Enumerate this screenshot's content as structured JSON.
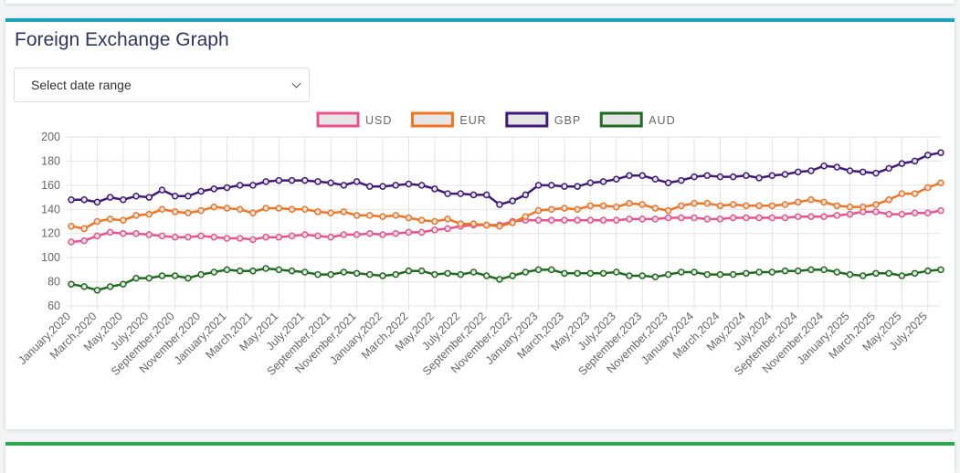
{
  "title": "Foreign Exchange Graph",
  "date_select": {
    "placeholder": "Select date range"
  },
  "chart_data": {
    "type": "line",
    "categories": [
      "January,2020",
      null,
      "March,2020",
      null,
      "May,2020",
      null,
      "July,2020",
      null,
      "September,2020",
      null,
      "November,2020",
      null,
      "January,2021",
      null,
      "March,2021",
      null,
      "May,2021",
      null,
      "July,2021",
      null,
      "September,2021",
      null,
      "November,2021",
      null,
      "January,2022",
      null,
      "March,2022",
      null,
      "May,2022",
      null,
      "July,2022",
      null,
      "September,2022",
      null,
      "November,2022",
      null,
      "January,2023",
      null,
      "March,2023",
      null,
      "May,2023",
      null,
      "July,2023",
      null,
      "September,2023",
      null,
      "November,2023",
      null,
      "January,2024",
      null,
      "March,2024",
      null,
      "May,2024",
      null,
      "July,2024",
      null,
      "September,2024",
      null,
      "November,2024",
      null,
      "January,2025",
      null,
      "March,2025",
      null,
      "May,2025",
      null,
      "July,2025",
      null
    ],
    "series": [
      {
        "name": "USD",
        "color": "#e8538f",
        "values": [
          113,
          114,
          118,
          121,
          120,
          120,
          119,
          118,
          117,
          117,
          118,
          117,
          116,
          116,
          115,
          117,
          117,
          118,
          119,
          118,
          117,
          119,
          119,
          120,
          119,
          120,
          121,
          121,
          123,
          124,
          126,
          127,
          127,
          127,
          130,
          131,
          131,
          131,
          131,
          131,
          131,
          131,
          131,
          132,
          132,
          132,
          133,
          133,
          133,
          132,
          132,
          133,
          133,
          133,
          133,
          133,
          134,
          134,
          134,
          135,
          136,
          138,
          138,
          136,
          136,
          137,
          137,
          139
        ]
      },
      {
        "name": "EUR",
        "color": "#f07423",
        "values": [
          126,
          124,
          130,
          132,
          131,
          135,
          136,
          140,
          138,
          137,
          139,
          142,
          141,
          140,
          137,
          141,
          141,
          140,
          140,
          138,
          137,
          138,
          135,
          135,
          134,
          135,
          133,
          131,
          130,
          132,
          128,
          128,
          127,
          126,
          129,
          134,
          139,
          140,
          141,
          140,
          143,
          143,
          142,
          145,
          144,
          141,
          139,
          143,
          145,
          145,
          143,
          144,
          143,
          143,
          143,
          144,
          146,
          148,
          146,
          143,
          142,
          142,
          144,
          148,
          153,
          153,
          158,
          162
        ]
      },
      {
        "name": "GBP",
        "color": "#3f1a7a",
        "values": [
          148,
          148,
          146,
          150,
          148,
          151,
          150,
          156,
          151,
          151,
          155,
          157,
          158,
          160,
          160,
          163,
          164,
          164,
          164,
          163,
          162,
          160,
          163,
          159,
          159,
          160,
          161,
          160,
          157,
          153,
          153,
          152,
          152,
          144,
          147,
          152,
          160,
          160,
          159,
          159,
          162,
          163,
          165,
          168,
          168,
          165,
          162,
          164,
          167,
          168,
          167,
          167,
          168,
          166,
          168,
          169,
          171,
          172,
          176,
          175,
          172,
          171,
          170,
          174,
          178,
          180,
          185,
          187
        ]
      },
      {
        "name": "AUD",
        "color": "#1f6b1f",
        "values": [
          78,
          76,
          73,
          76,
          78,
          83,
          83,
          85,
          85,
          83,
          86,
          88,
          90,
          89,
          89,
          91,
          90,
          89,
          88,
          86,
          86,
          88,
          87,
          86,
          85,
          86,
          89,
          89,
          86,
          87,
          86,
          88,
          85,
          82,
          85,
          88,
          90,
          90,
          87,
          87,
          87,
          87,
          88,
          85,
          85,
          84,
          86,
          88,
          88,
          86,
          86,
          86,
          87,
          88,
          88,
          89,
          89,
          90,
          90,
          88,
          86,
          85,
          87,
          87,
          85,
          87,
          89,
          90
        ]
      }
    ],
    "ylim": [
      60,
      200
    ],
    "yticks": [
      60,
      80,
      100,
      120,
      140,
      160,
      180,
      200
    ],
    "grid": true,
    "legend": "top"
  }
}
